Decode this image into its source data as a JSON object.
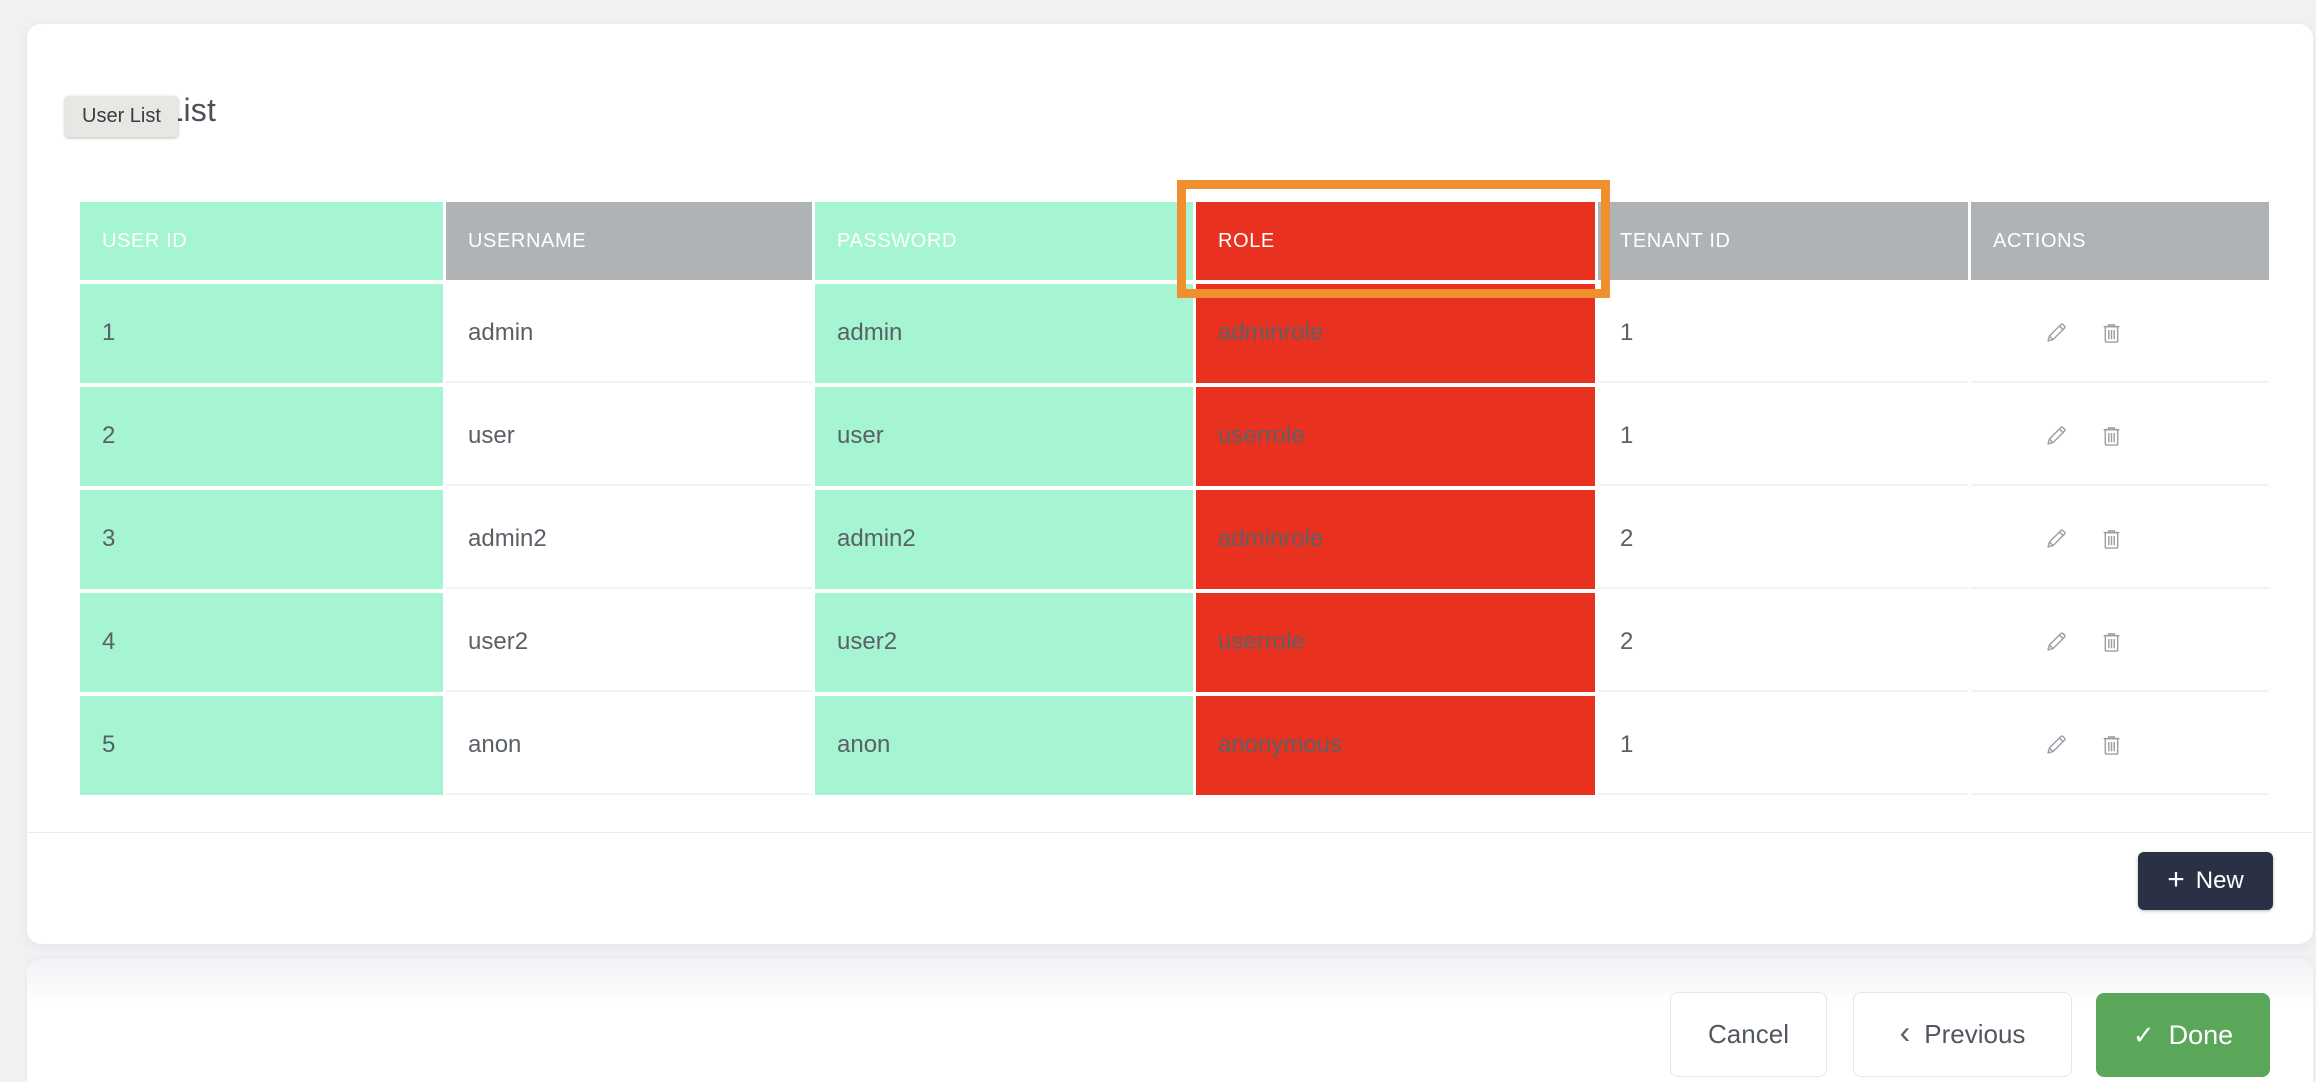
{
  "page": {
    "title": "User List",
    "tooltip": "User List"
  },
  "table": {
    "columns": [
      {
        "key": "user_id",
        "label": "USER ID",
        "header_style": "mint",
        "cell_style": "mint"
      },
      {
        "key": "username",
        "label": "USERNAME",
        "header_style": "gray",
        "cell_style": "white"
      },
      {
        "key": "password",
        "label": "PASSWORD",
        "header_style": "mint",
        "cell_style": "mint"
      },
      {
        "key": "role",
        "label": "ROLE",
        "header_style": "red",
        "cell_style": "red",
        "highlighted": true
      },
      {
        "key": "tenant_id",
        "label": "TENANT ID",
        "header_style": "gray",
        "cell_style": "white"
      },
      {
        "key": "actions",
        "label": "ACTIONS",
        "header_style": "gray",
        "cell_style": "white"
      }
    ],
    "rows": [
      {
        "user_id": "1",
        "username": "admin",
        "password": "admin",
        "role": "adminrole",
        "tenant_id": "1"
      },
      {
        "user_id": "2",
        "username": "user",
        "password": "user",
        "role": "userrole",
        "tenant_id": "1"
      },
      {
        "user_id": "3",
        "username": "admin2",
        "password": "admin2",
        "role": "adminrole",
        "tenant_id": "2"
      },
      {
        "user_id": "4",
        "username": "user2",
        "password": "user2",
        "role": "userrole",
        "tenant_id": "2"
      },
      {
        "user_id": "5",
        "username": "anon",
        "password": "anon",
        "role": "anonymous",
        "tenant_id": "1"
      }
    ],
    "row_actions": [
      "edit",
      "delete"
    ]
  },
  "buttons": {
    "new_plus": "+",
    "new_label": "New",
    "cancel_label": "Cancel",
    "previous_chevron": "‹",
    "previous_label": "Previous",
    "done_check": "✓",
    "done_label": "Done"
  },
  "colors": {
    "mint": "#a6f5d2",
    "header_gray": "#b0b3b6",
    "highlight_red": "#e8321f",
    "highlight_orange": "#ef8f2d",
    "new_button_navy": "#2b3144",
    "done_green": "#5aa75a"
  }
}
